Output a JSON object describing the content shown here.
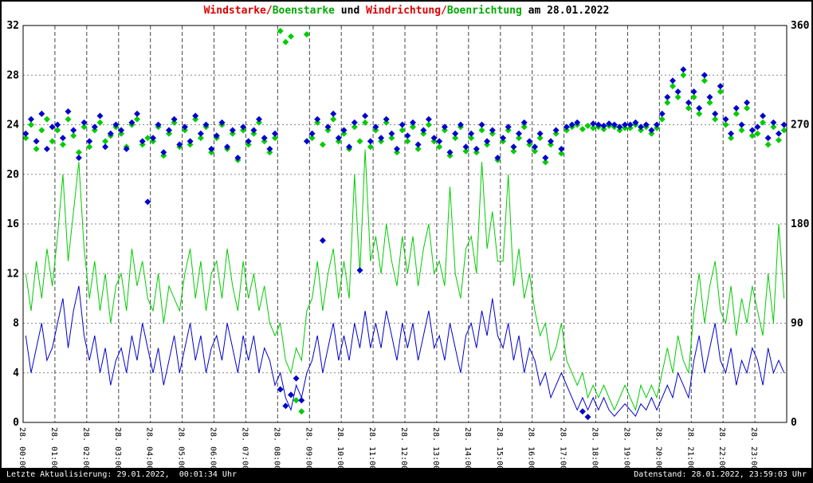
{
  "title_segments": [
    {
      "text": "Windstarke/",
      "color": "#dd0000"
    },
    {
      "text": "Boenstarke",
      "color": "#00aa00"
    },
    {
      "text": " und ",
      "color": "#000000"
    },
    {
      "text": "Windrichtung/",
      "color": "#dd0000"
    },
    {
      "text": "Boenrichtung",
      "color": "#00aa00"
    },
    {
      "text": " am 28.01.2022",
      "color": "#000000"
    }
  ],
  "footer": {
    "left": "Letzte Aktualisierung: 29.01.2022,  00:01:34 Uhr",
    "right": "Datenstand: 28.01.2022, 23:59:03 Uhr"
  },
  "chart_data": {
    "type": "mixed",
    "title": "Windstarke/Boenstarke und Windrichtung/Boenrichtung am 28.01.2022",
    "date": "28.01.2022",
    "sample_interval_minutes": 10,
    "grid": "on",
    "left_axis": {
      "min": 0,
      "max": 32,
      "ticks": [
        0,
        4,
        8,
        12,
        16,
        20,
        24,
        28,
        32
      ]
    },
    "right_axis": {
      "min": 0,
      "max": 360,
      "ticks": [
        0,
        90,
        180,
        270,
        360
      ]
    },
    "x_axis": {
      "labels": [
        "28. 00:00",
        "28. 01:00",
        "28. 02:00",
        "28. 03:00",
        "28. 04:00",
        "28. 05:00",
        "28. 06:00",
        "28. 07:00",
        "28. 08:00",
        "28. 09:00",
        "28. 10:00",
        "28. 11:00",
        "28. 12:00",
        "28. 13:00",
        "28. 14:00",
        "28. 15:00",
        "28. 16:00",
        "28. 17:00",
        "28. 18:00",
        "28. 19:00",
        "28. 20:00",
        "28. 21:00",
        "28. 22:00",
        "28. 23:00"
      ]
    },
    "colors": {
      "wind_blue": "#0000cc",
      "gust_green": "#00cc00",
      "grid_v": "#444444",
      "grid_h": "#888888",
      "frame": "#000000",
      "footer_bg": "#000000",
      "footer_text": "#ffffff"
    },
    "series": [
      {
        "name": "Windstarke",
        "type": "line",
        "axis": "left",
        "color": "#0000cc",
        "values": [
          7,
          4,
          6,
          8,
          5,
          6,
          8,
          10,
          6,
          9,
          11,
          7,
          5,
          7,
          4,
          6,
          3,
          5,
          6,
          4,
          7,
          5,
          8,
          6,
          4,
          6,
          3,
          5,
          7,
          4,
          6,
          8,
          5,
          7,
          4,
          6,
          7,
          5,
          8,
          6,
          4,
          7,
          5,
          7,
          4,
          6,
          5,
          3,
          4,
          2,
          1,
          3,
          2,
          4,
          5,
          7,
          4,
          6,
          8,
          5,
          7,
          5,
          8,
          6,
          9,
          6,
          8,
          6,
          9,
          7,
          5,
          8,
          6,
          8,
          5,
          7,
          9,
          6,
          7,
          5,
          8,
          6,
          4,
          7,
          8,
          6,
          9,
          7,
          10,
          7,
          6,
          8,
          5,
          7,
          4,
          6,
          5,
          3,
          4,
          2,
          3,
          4,
          3,
          2,
          1,
          2,
          1,
          2,
          1,
          2,
          1,
          0.5,
          1,
          1.5,
          1,
          0.5,
          1.5,
          1,
          2,
          1,
          2,
          3,
          2,
          4,
          3,
          2,
          5,
          7,
          4,
          6,
          8,
          5,
          4,
          6,
          3,
          5,
          4,
          6,
          5,
          3,
          6,
          4,
          5,
          4
        ]
      },
      {
        "name": "Boenstarke",
        "type": "line",
        "axis": "left",
        "color": "#00cc00",
        "values": [
          12,
          9,
          13,
          10,
          14,
          11,
          15,
          20,
          13,
          17,
          21,
          14,
          10,
          13,
          9,
          12,
          8,
          11,
          12,
          9,
          14,
          11,
          13,
          10,
          9,
          12,
          8,
          11,
          10,
          9,
          12,
          14,
          10,
          13,
          9,
          12,
          13,
          10,
          14,
          11,
          9,
          13,
          10,
          12,
          9,
          11,
          8,
          7,
          8,
          5,
          4,
          6,
          5,
          9,
          10,
          13,
          9,
          12,
          14,
          10,
          13,
          10,
          20,
          12,
          22,
          13,
          15,
          12,
          16,
          13,
          11,
          15,
          12,
          15,
          11,
          14,
          16,
          12,
          13,
          11,
          19,
          12,
          10,
          14,
          15,
          12,
          21,
          14,
          17,
          13,
          13,
          20,
          11,
          14,
          10,
          12,
          9,
          7,
          8,
          5,
          6,
          8,
          5,
          4,
          3,
          4,
          2,
          3,
          2,
          3,
          2,
          1,
          2,
          3,
          2,
          1,
          3,
          2,
          3,
          2,
          4,
          6,
          4,
          7,
          5,
          4,
          9,
          12,
          8,
          11,
          13,
          9,
          8,
          11,
          7,
          10,
          8,
          11,
          9,
          7,
          12,
          8,
          16,
          10
        ]
      },
      {
        "name": "Windrichtung",
        "type": "scatter",
        "axis": "right",
        "color": "#0000cc",
        "values": [
          262,
          275,
          255,
          280,
          248,
          268,
          270,
          258,
          282,
          265,
          240,
          272,
          255,
          268,
          278,
          250,
          262,
          270,
          265,
          248,
          272,
          280,
          255,
          200,
          258,
          270,
          245,
          265,
          275,
          252,
          268,
          255,
          278,
          262,
          270,
          248,
          260,
          272,
          250,
          265,
          240,
          268,
          255,
          265,
          275,
          258,
          248,
          262,
          30,
          15,
          25,
          40,
          20,
          255,
          262,
          275,
          165,
          268,
          280,
          258,
          265,
          250,
          272,
          138,
          278,
          255,
          268,
          258,
          275,
          262,
          248,
          270,
          260,
          272,
          252,
          265,
          275,
          258,
          255,
          268,
          245,
          262,
          270,
          250,
          262,
          248,
          270,
          255,
          265,
          240,
          258,
          268,
          250,
          262,
          272,
          255,
          250,
          262,
          240,
          255,
          265,
          248,
          268,
          270,
          272,
          10,
          5,
          271,
          270,
          269,
          271,
          270,
          268,
          270,
          270,
          272,
          268,
          270,
          265,
          270,
          280,
          295,
          310,
          300,
          320,
          290,
          300,
          285,
          315,
          295,
          280,
          305,
          275,
          262,
          285,
          270,
          290,
          265,
          268,
          278,
          258,
          272,
          262,
          270
        ]
      },
      {
        "name": "Boenrichtung",
        "type": "scatter",
        "axis": "right",
        "color": "#00cc00",
        "values": [
          258,
          270,
          248,
          265,
          275,
          255,
          265,
          252,
          275,
          260,
          245,
          268,
          250,
          265,
          272,
          255,
          260,
          268,
          262,
          250,
          270,
          275,
          252,
          258,
          255,
          268,
          242,
          262,
          272,
          250,
          265,
          252,
          275,
          258,
          268,
          245,
          258,
          270,
          248,
          262,
          238,
          265,
          252,
          262,
          272,
          255,
          245,
          258,
          355,
          345,
          350,
          20,
          10,
          352,
          258,
          272,
          252,
          265,
          275,
          255,
          262,
          248,
          268,
          255,
          272,
          250,
          265,
          255,
          272,
          258,
          245,
          265,
          255,
          268,
          248,
          262,
          270,
          255,
          250,
          265,
          242,
          258,
          268,
          246,
          258,
          245,
          265,
          252,
          262,
          238,
          255,
          265,
          246,
          258,
          268,
          252,
          246,
          258,
          236,
          252,
          262,
          244,
          265,
          268,
          270,
          266,
          269,
          267,
          268,
          266,
          269,
          268,
          265,
          267,
          267,
          270,
          265,
          268,
          262,
          267,
          275,
          290,
          305,
          295,
          315,
          285,
          295,
          280,
          310,
          290,
          275,
          300,
          270,
          258,
          280,
          265,
          285,
          260,
          262,
          272,
          252,
          268,
          256,
          265
        ]
      }
    ]
  }
}
